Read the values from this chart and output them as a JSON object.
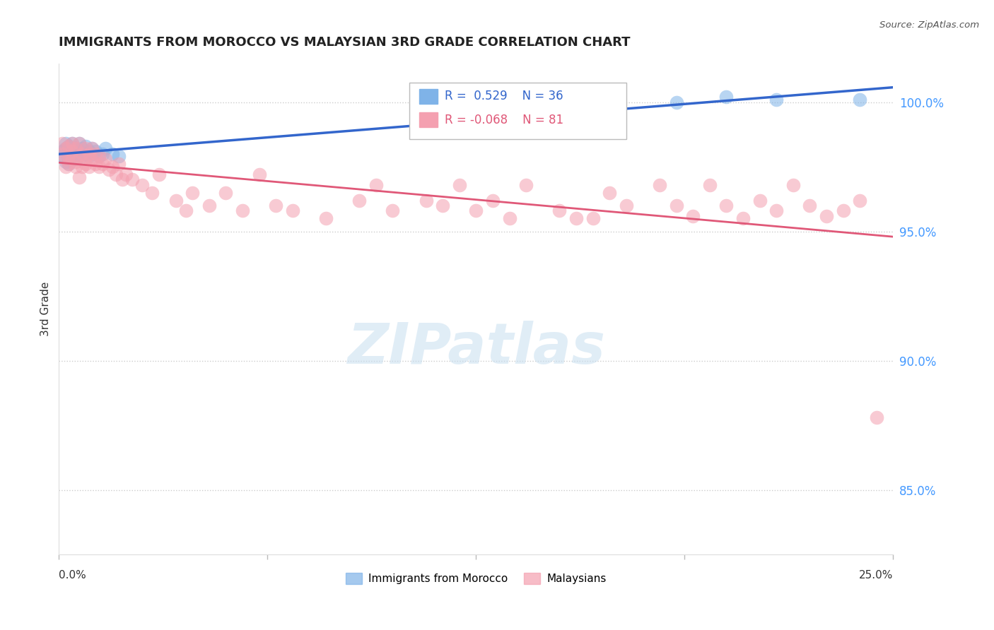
{
  "title": "IMMIGRANTS FROM MOROCCO VS MALAYSIAN 3RD GRADE CORRELATION CHART",
  "source_text": "Source: ZipAtlas.com",
  "ylabel": "3rd Grade",
  "ytick_values": [
    0.85,
    0.9,
    0.95,
    1.0
  ],
  "xlim": [
    0.0,
    0.25
  ],
  "ylim": [
    0.825,
    1.015
  ],
  "legend_morocco": "Immigrants from Morocco",
  "legend_malaysian": "Malaysians",
  "r_morocco": 0.529,
  "n_morocco": 36,
  "r_malaysian": -0.068,
  "n_malaysian": 81,
  "color_morocco": "#7fb3e8",
  "color_malaysian": "#f4a0b0",
  "trendline_morocco_color": "#3366cc",
  "trendline_malaysian_color": "#e05878",
  "morocco_x": [
    0.001,
    0.001,
    0.002,
    0.002,
    0.002,
    0.003,
    0.003,
    0.003,
    0.003,
    0.004,
    0.004,
    0.004,
    0.005,
    0.005,
    0.005,
    0.006,
    0.006,
    0.007,
    0.007,
    0.008,
    0.008,
    0.009,
    0.009,
    0.01,
    0.01,
    0.011,
    0.012,
    0.013,
    0.014,
    0.016,
    0.018,
    0.13,
    0.185,
    0.2,
    0.215,
    0.24
  ],
  "morocco_y": [
    0.979,
    0.981,
    0.977,
    0.982,
    0.984,
    0.976,
    0.98,
    0.983,
    0.978,
    0.979,
    0.981,
    0.984,
    0.978,
    0.982,
    0.979,
    0.981,
    0.984,
    0.979,
    0.982,
    0.98,
    0.983,
    0.981,
    0.979,
    0.982,
    0.98,
    0.981,
    0.979,
    0.98,
    0.982,
    0.98,
    0.979,
    0.999,
    1.0,
    1.002,
    1.001,
    1.001
  ],
  "malaysian_x": [
    0.001,
    0.001,
    0.002,
    0.002,
    0.002,
    0.003,
    0.003,
    0.003,
    0.004,
    0.004,
    0.004,
    0.005,
    0.005,
    0.005,
    0.006,
    0.006,
    0.006,
    0.007,
    0.007,
    0.008,
    0.008,
    0.008,
    0.009,
    0.009,
    0.01,
    0.01,
    0.011,
    0.011,
    0.012,
    0.012,
    0.013,
    0.014,
    0.015,
    0.016,
    0.017,
    0.018,
    0.019,
    0.02,
    0.022,
    0.025,
    0.028,
    0.03,
    0.035,
    0.038,
    0.04,
    0.045,
    0.05,
    0.055,
    0.06,
    0.065,
    0.07,
    0.08,
    0.09,
    0.095,
    0.1,
    0.11,
    0.115,
    0.12,
    0.125,
    0.13,
    0.135,
    0.14,
    0.15,
    0.155,
    0.16,
    0.165,
    0.17,
    0.18,
    0.185,
    0.19,
    0.195,
    0.2,
    0.205,
    0.21,
    0.215,
    0.22,
    0.225,
    0.23,
    0.235,
    0.24,
    0.245
  ],
  "malaysian_y": [
    0.98,
    0.984,
    0.978,
    0.982,
    0.975,
    0.979,
    0.983,
    0.976,
    0.981,
    0.978,
    0.984,
    0.977,
    0.982,
    0.975,
    0.979,
    0.984,
    0.971,
    0.98,
    0.975,
    0.982,
    0.976,
    0.979,
    0.975,
    0.98,
    0.978,
    0.982,
    0.976,
    0.98,
    0.975,
    0.979,
    0.976,
    0.978,
    0.974,
    0.975,
    0.972,
    0.976,
    0.97,
    0.972,
    0.97,
    0.968,
    0.965,
    0.972,
    0.962,
    0.958,
    0.965,
    0.96,
    0.965,
    0.958,
    0.972,
    0.96,
    0.958,
    0.955,
    0.962,
    0.968,
    0.958,
    0.962,
    0.96,
    0.968,
    0.958,
    0.962,
    0.955,
    0.968,
    0.958,
    0.955,
    0.955,
    0.965,
    0.96,
    0.968,
    0.96,
    0.956,
    0.968,
    0.96,
    0.955,
    0.962,
    0.958,
    0.968,
    0.96,
    0.956,
    0.958,
    0.962,
    0.878
  ]
}
